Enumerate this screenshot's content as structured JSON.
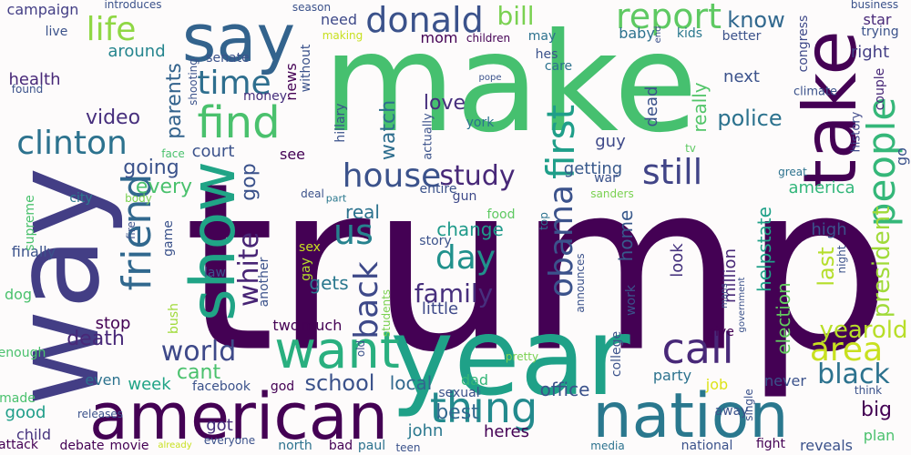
{
  "words": [
    {
      "text": "trump",
      "color": "#440154"
    },
    {
      "text": "make",
      "color": "#46c06f"
    },
    {
      "text": "way",
      "color": "#433e85"
    },
    {
      "text": "year",
      "color": "#1fa188"
    },
    {
      "text": "say",
      "color": "#33638d"
    },
    {
      "text": "american",
      "color": "#440154"
    },
    {
      "text": "nation",
      "color": "#2a788e"
    },
    {
      "text": "take",
      "color": "#440154"
    },
    {
      "text": "show",
      "color": "#20a486"
    },
    {
      "text": "want",
      "color": "#29af7f"
    },
    {
      "text": "find",
      "color": "#4ac16d"
    },
    {
      "text": "donald",
      "color": "#3b528b"
    },
    {
      "text": "report",
      "color": "#5ec962"
    },
    {
      "text": "thing",
      "color": "#238a8d"
    },
    {
      "text": "people",
      "color": "#35b779"
    },
    {
      "text": "friend",
      "color": "#31688e"
    },
    {
      "text": "clinton",
      "color": "#2c728e"
    },
    {
      "text": "house",
      "color": "#3b528b"
    },
    {
      "text": "life",
      "color": "#8fd744"
    },
    {
      "text": "time",
      "color": "#2e6e8e"
    },
    {
      "text": "first",
      "color": "#1f9e89"
    },
    {
      "text": "still",
      "color": "#414487"
    },
    {
      "text": "call",
      "color": "#482878"
    },
    {
      "text": "us",
      "color": "#26828e"
    },
    {
      "text": "day",
      "color": "#21918c"
    },
    {
      "text": "area",
      "color": "#c8e020"
    },
    {
      "text": "black",
      "color": "#2c728e"
    },
    {
      "text": "back",
      "color": "#3e4989"
    },
    {
      "text": "white",
      "color": "#482475"
    },
    {
      "text": "obama",
      "color": "#3b528b"
    },
    {
      "text": "study",
      "color": "#482878"
    },
    {
      "text": "world",
      "color": "#3e4989"
    },
    {
      "text": "family",
      "color": "#472f7d"
    },
    {
      "text": "bill",
      "color": "#7ad151"
    },
    {
      "text": "know",
      "color": "#31688e"
    },
    {
      "text": "police",
      "color": "#2c728e"
    },
    {
      "text": "video",
      "color": "#472f7d"
    },
    {
      "text": "president",
      "color": "#a0da39"
    },
    {
      "text": "going",
      "color": "#3b528b"
    },
    {
      "text": "every",
      "color": "#4ac16d"
    },
    {
      "text": "school",
      "color": "#3b528b"
    },
    {
      "text": "best",
      "color": "#31688e"
    },
    {
      "text": "death",
      "color": "#482878"
    },
    {
      "text": "yearold",
      "color": "#b8de29"
    },
    {
      "text": "cant",
      "color": "#4ac16d"
    },
    {
      "text": "love",
      "color": "#472f7d"
    },
    {
      "text": "watch",
      "color": "#2e6e8e"
    },
    {
      "text": "last",
      "color": "#b5de2b"
    },
    {
      "text": "election",
      "color": "#63cb5f"
    },
    {
      "text": "parents",
      "color": "#33638d"
    },
    {
      "text": "real",
      "color": "#2c728e"
    },
    {
      "text": "change",
      "color": "#1f9a8a"
    },
    {
      "text": "gop",
      "color": "#3b528b"
    },
    {
      "text": "really",
      "color": "#52c569"
    },
    {
      "text": "little",
      "color": "#3e4989"
    },
    {
      "text": "big",
      "color": "#440154"
    },
    {
      "text": "around",
      "color": "#25858e"
    },
    {
      "text": "campaign",
      "color": "#433e85"
    },
    {
      "text": "health",
      "color": "#482878"
    },
    {
      "text": "local",
      "color": "#31688e"
    },
    {
      "text": "week",
      "color": "#20a486"
    },
    {
      "text": "gets",
      "color": "#2a788e"
    },
    {
      "text": "america",
      "color": "#32b67a"
    },
    {
      "text": "helpstate",
      "color": "#1fa188"
    },
    {
      "text": "home",
      "color": "#38598c"
    },
    {
      "text": "next",
      "color": "#3b528b"
    },
    {
      "text": "court",
      "color": "#3b528b"
    },
    {
      "text": "getting",
      "color": "#38598c"
    },
    {
      "text": "guy",
      "color": "#3e4989"
    },
    {
      "text": "dead",
      "color": "#3b528b"
    },
    {
      "text": "look",
      "color": "#46337e"
    },
    {
      "text": "right",
      "color": "#433e85"
    },
    {
      "text": "high",
      "color": "#3b528b"
    },
    {
      "text": "million",
      "color": "#482878"
    },
    {
      "text": "office",
      "color": "#3b528b"
    },
    {
      "text": "john",
      "color": "#2a788e"
    },
    {
      "text": "heres",
      "color": "#440154"
    },
    {
      "text": "good",
      "color": "#1f9e89"
    },
    {
      "text": "child",
      "color": "#46337e"
    },
    {
      "text": "got",
      "color": "#472f7d"
    },
    {
      "text": "plan",
      "color": "#4ac16d"
    },
    {
      "text": "reveals",
      "color": "#3b528b"
    },
    {
      "text": "never",
      "color": "#3b528b"
    },
    {
      "text": "job",
      "color": "#dde318"
    },
    {
      "text": "party",
      "color": "#2c728e"
    },
    {
      "text": "dad",
      "color": "#35b779"
    },
    {
      "text": "even",
      "color": "#2c728e"
    },
    {
      "text": "stop",
      "color": "#440154"
    },
    {
      "text": "dog",
      "color": "#4ac16d"
    },
    {
      "text": "finally",
      "color": "#3b528b"
    },
    {
      "text": "news",
      "color": "#440154"
    },
    {
      "text": "mom",
      "color": "#440154"
    },
    {
      "text": "need",
      "color": "#3e4989"
    },
    {
      "text": "baby",
      "color": "#2c728e"
    },
    {
      "text": "kids",
      "color": "#2a788e"
    },
    {
      "text": "better",
      "color": "#3b528b"
    },
    {
      "text": "star",
      "color": "#482878"
    },
    {
      "text": "trying",
      "color": "#3b528b"
    },
    {
      "text": "couple",
      "color": "#482878"
    },
    {
      "text": "congress",
      "color": "#3e4989"
    },
    {
      "text": "may",
      "color": "#2c728e"
    },
    {
      "text": "hes",
      "color": "#3b528b"
    },
    {
      "text": "care",
      "color": "#2c728e"
    },
    {
      "text": "war",
      "color": "#3b528b"
    },
    {
      "text": "senate",
      "color": "#3b528b"
    },
    {
      "text": "money",
      "color": "#472f7d"
    },
    {
      "text": "without",
      "color": "#3b528b"
    },
    {
      "text": "live",
      "color": "#3b528b"
    },
    {
      "text": "found",
      "color": "#3b528b"
    },
    {
      "text": "shooting",
      "color": "#3b528b"
    },
    {
      "text": "hillary",
      "color": "#3b528b"
    },
    {
      "text": "actually",
      "color": "#3b528b"
    },
    {
      "text": "york",
      "color": "#2c728e"
    },
    {
      "text": "see",
      "color": "#440154"
    },
    {
      "text": "go",
      "color": "#3b528b"
    },
    {
      "text": "climate",
      "color": "#3b528b"
    },
    {
      "text": "history",
      "color": "#3e4989"
    },
    {
      "text": "tv",
      "color": "#5ec962"
    },
    {
      "text": "great",
      "color": "#2c728e"
    },
    {
      "text": "sanders",
      "color": "#7ad151"
    },
    {
      "text": "deal",
      "color": "#3b528b"
    },
    {
      "text": "part",
      "color": "#2a788e"
    },
    {
      "text": "fire",
      "color": "#3b528b"
    },
    {
      "text": "body",
      "color": "#7ad151"
    },
    {
      "text": "face",
      "color": "#4ac16d"
    },
    {
      "text": "city",
      "color": "#2a788e"
    },
    {
      "text": "supreme",
      "color": "#4ac16d"
    },
    {
      "text": "game",
      "color": "#3b528b"
    },
    {
      "text": "entire",
      "color": "#3b528b"
    },
    {
      "text": "gun",
      "color": "#3e4989"
    },
    {
      "text": "food",
      "color": "#5ec962"
    },
    {
      "text": "top",
      "color": "#2c728e"
    },
    {
      "text": "story",
      "color": "#3b528b"
    },
    {
      "text": "announces",
      "color": "#3b528b"
    },
    {
      "text": "work",
      "color": "#3b528b"
    },
    {
      "text": "government",
      "color": "#3b528b"
    },
    {
      "text": "mans",
      "color": "#3b528b"
    },
    {
      "text": "night",
      "color": "#3b528b"
    },
    {
      "text": "sex",
      "color": "#c8e020"
    },
    {
      "text": "gay",
      "color": "#b5de2b"
    },
    {
      "text": "law",
      "color": "#3b528b"
    },
    {
      "text": "students",
      "color": "#7ad151"
    },
    {
      "text": "another",
      "color": "#3b528b"
    },
    {
      "text": "two",
      "color": "#440154"
    },
    {
      "text": "much",
      "color": "#440154"
    },
    {
      "text": "bush",
      "color": "#a0da39"
    },
    {
      "text": "old",
      "color": "#3b528b"
    },
    {
      "text": "college",
      "color": "#3b528b"
    },
    {
      "text": "give",
      "color": "#440154"
    },
    {
      "text": "pretty",
      "color": "#7ad151"
    },
    {
      "text": "enough",
      "color": "#4ac16d"
    },
    {
      "text": "facebook",
      "color": "#3b528b"
    },
    {
      "text": "god",
      "color": "#440154"
    },
    {
      "text": "made",
      "color": "#4ac16d"
    },
    {
      "text": "releases",
      "color": "#3b528b"
    },
    {
      "text": "sexual",
      "color": "#3b528b"
    },
    {
      "text": "single",
      "color": "#3b528b"
    },
    {
      "text": "think",
      "color": "#3b528b"
    },
    {
      "text": "away",
      "color": "#3b528b"
    },
    {
      "text": "attack",
      "color": "#440154"
    },
    {
      "text": "debate",
      "color": "#440154"
    },
    {
      "text": "movie",
      "color": "#440154"
    },
    {
      "text": "already",
      "color": "#c8e020"
    },
    {
      "text": "everyone",
      "color": "#3b528b"
    },
    {
      "text": "north",
      "color": "#2c728e"
    },
    {
      "text": "bad",
      "color": "#440154"
    },
    {
      "text": "paul",
      "color": "#2c728e"
    },
    {
      "text": "teen",
      "color": "#3b528b"
    },
    {
      "text": "media",
      "color": "#2c728e"
    },
    {
      "text": "national",
      "color": "#3b528b"
    },
    {
      "text": "fight",
      "color": "#440154"
    },
    {
      "text": "introduces",
      "color": "#3b528b"
    },
    {
      "text": "season",
      "color": "#3b528b"
    },
    {
      "text": "making",
      "color": "#c8e020"
    },
    {
      "text": "children",
      "color": "#440154"
    },
    {
      "text": "pope",
      "color": "#3b528b"
    },
    {
      "text": "end",
      "color": "#3b528b"
    },
    {
      "text": "business",
      "color": "#3b528b"
    }
  ]
}
